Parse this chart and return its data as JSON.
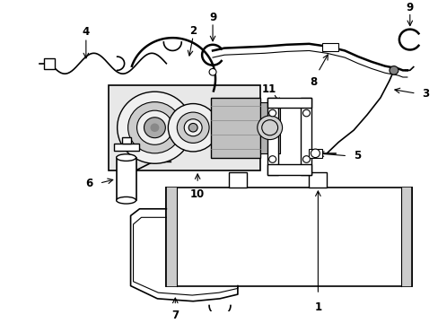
{
  "background_color": "#ffffff",
  "line_color": "#000000",
  "gray_color": "#888888",
  "light_gray": "#d8d8d8",
  "mid_gray": "#aaaaaa"
}
